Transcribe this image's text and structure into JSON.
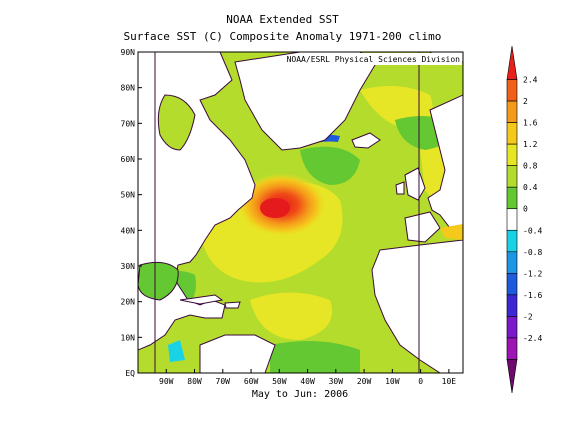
{
  "header": {
    "title": "NOAA Extended SST",
    "subtitle": "Surface SST (C) Composite Anomaly 1971-200 climo",
    "credit": "NOAA/ESRL Physical Sciences Division",
    "period": "May to Jun: 2006"
  },
  "map": {
    "lon_range": [
      -100,
      15
    ],
    "lat_range": [
      0,
      90
    ],
    "lat_ticks": [
      {
        "lat": 90,
        "label": "90N"
      },
      {
        "lat": 80,
        "label": "80N"
      },
      {
        "lat": 70,
        "label": "70N"
      },
      {
        "lat": 60,
        "label": "60N"
      },
      {
        "lat": 50,
        "label": "50N"
      },
      {
        "lat": 40,
        "label": "40N"
      },
      {
        "lat": 30,
        "label": "30N"
      },
      {
        "lat": 20,
        "label": "20N"
      },
      {
        "lat": 10,
        "label": "10N"
      },
      {
        "lat": 0,
        "label": "EQ"
      }
    ],
    "lon_ticks": [
      {
        "lon": -90,
        "label": "90W"
      },
      {
        "lon": -80,
        "label": "80W"
      },
      {
        "lon": -70,
        "label": "70W"
      },
      {
        "lon": -60,
        "label": "60W"
      },
      {
        "lon": -50,
        "label": "50W"
      },
      {
        "lon": -40,
        "label": "40W"
      },
      {
        "lon": -30,
        "label": "30W"
      },
      {
        "lon": -20,
        "label": "20W"
      },
      {
        "lon": -10,
        "label": "10W"
      },
      {
        "lon": 0,
        "label": "0"
      },
      {
        "lon": 10,
        "label": "10E"
      }
    ],
    "land_color": "#ffffff",
    "coast_color": "#3a0a3a"
  },
  "colorbar": {
    "levels": [
      "2.4",
      "2",
      "1.6",
      "1.2",
      "0.8",
      "0.4",
      "0",
      "-0.4",
      "-0.8",
      "-1.2",
      "-1.6",
      "-2",
      "-2.4"
    ],
    "colors": [
      "#e8201a",
      "#f06018",
      "#f39a1a",
      "#f5c81c",
      "#e6e626",
      "#b4dc2c",
      "#64c832",
      "#ffffff",
      "#1ad2e6",
      "#1e96e6",
      "#1e5adc",
      "#3c28d2",
      "#7818c8",
      "#9c14b4",
      "#6e0a6e"
    ]
  }
}
